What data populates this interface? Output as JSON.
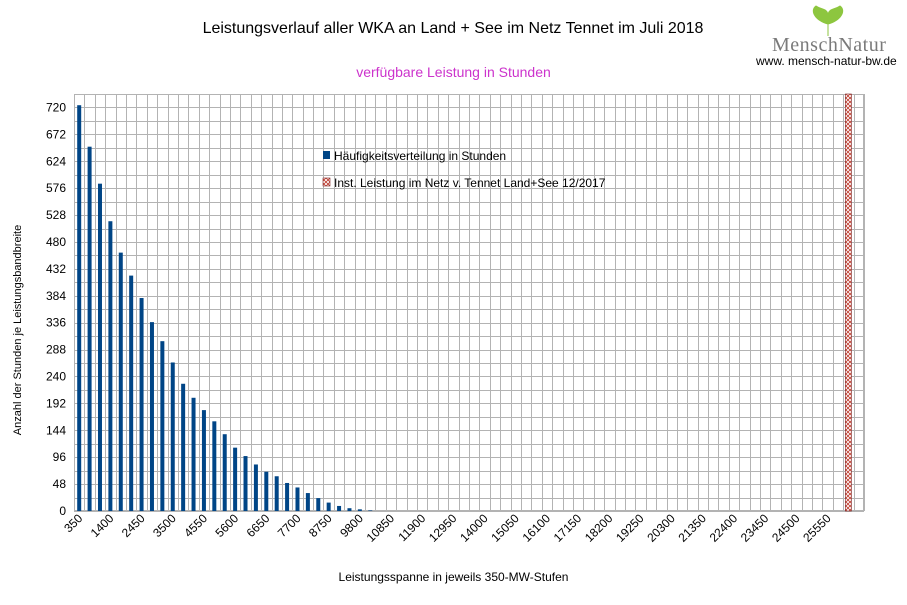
{
  "chart_data": {
    "type": "bar",
    "title": "Leistungsverlauf aller WKA an Land + See im Netz Tennet im Juli 2018",
    "subtitle": "verfügbare Leistung in Stunden",
    "xlabel": "Leistungsspanne in jeweils 350-MW-Stufen",
    "ylabel": "Anzahl der Stunden je Leistungsbandbreite",
    "ylim": [
      0,
      744
    ],
    "yticks": [
      0,
      48,
      96,
      144,
      192,
      240,
      288,
      336,
      384,
      432,
      480,
      528,
      576,
      624,
      672,
      720
    ],
    "xtick_labels": [
      "350",
      "1400",
      "2450",
      "3500",
      "4550",
      "5600",
      "6650",
      "7700",
      "8750",
      "9800",
      "10850",
      "11900",
      "12950",
      "14000",
      "15050",
      "16100",
      "17150",
      "18200",
      "19250",
      "20300",
      "21350",
      "22400",
      "23450",
      "24500",
      "25550"
    ],
    "grid": true,
    "legend_position": "top-center",
    "series": [
      {
        "name": "Häufigkeitsverteilung in Stunden",
        "color": "#004586",
        "x_start": 350,
        "x_step": 350,
        "values": [
          724,
          650,
          584,
          517,
          461,
          420,
          380,
          337,
          303,
          265,
          227,
          202,
          180,
          160,
          137,
          113,
          98,
          83,
          70,
          62,
          50,
          42,
          32,
          23,
          15,
          9,
          5,
          3,
          1
        ]
      },
      {
        "name": "Inst. Leistung im Netz v. Tennet  Land+See 12/2017",
        "color": "#ff4444",
        "x": 26250,
        "value": 744
      }
    ]
  },
  "logo": {
    "text": "MenschNatur",
    "url": "www. mensch-natur-bw.de",
    "accent": "#8dc63f"
  }
}
